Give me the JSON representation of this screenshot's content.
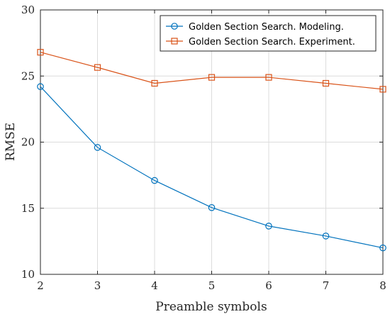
{
  "chart_data": {
    "type": "line",
    "title": "",
    "xlabel": "Preamble symbols",
    "ylabel": "RMSE",
    "x": [
      2,
      3,
      4,
      5,
      6,
      7,
      8
    ],
    "xlim": [
      2,
      8
    ],
    "ylim": [
      10,
      30
    ],
    "xticks": [
      "2",
      "3",
      "4",
      "5",
      "6",
      "7",
      "8"
    ],
    "yticks": [
      "10",
      "15",
      "20",
      "25",
      "30"
    ],
    "grid": true,
    "legend_position": "top-right",
    "series": [
      {
        "name": "Golden Section Search. Modeling.",
        "marker": "circle",
        "color": "#0072BD",
        "values": [
          24.2,
          19.6,
          17.1,
          15.05,
          13.65,
          12.9,
          12.0
        ]
      },
      {
        "name": "Golden Section Search. Experiment.",
        "marker": "square",
        "color": "#D95319",
        "values": [
          26.8,
          25.65,
          24.45,
          24.9,
          24.9,
          24.45,
          24.0
        ]
      }
    ]
  }
}
